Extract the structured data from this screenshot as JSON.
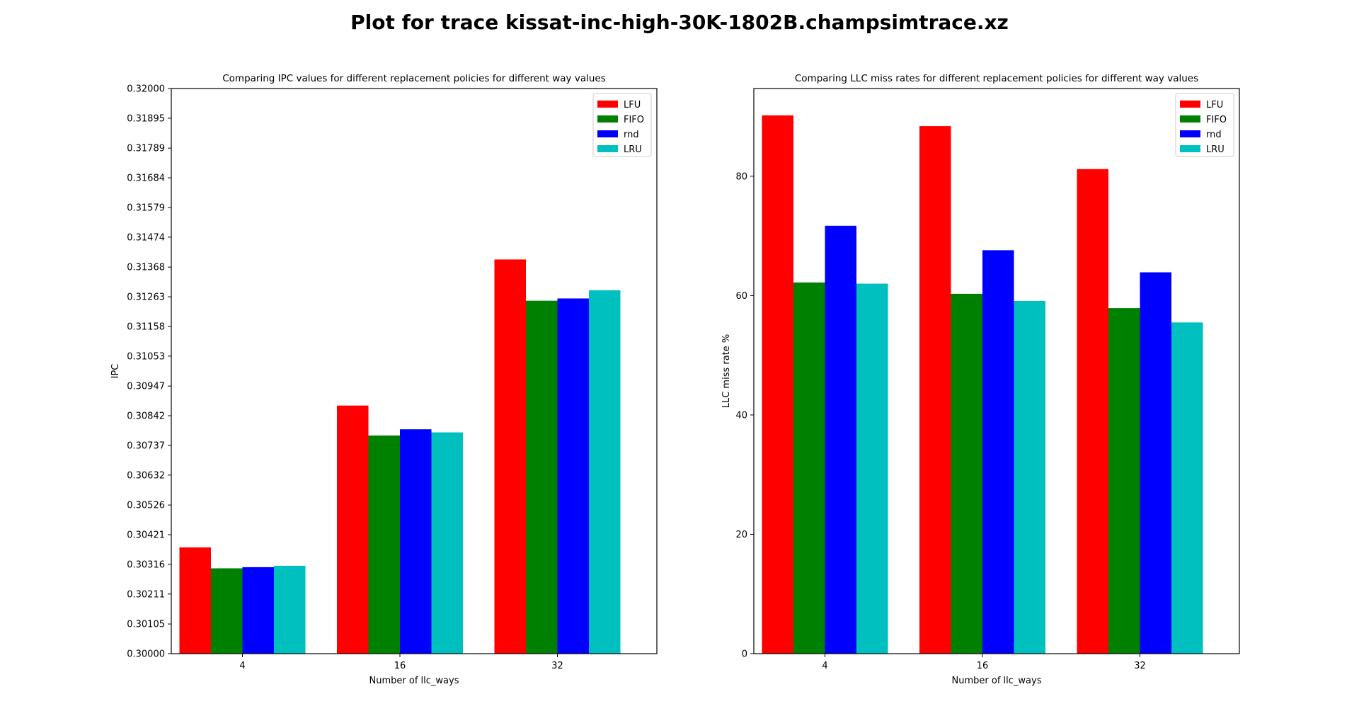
{
  "title": "Plot for trace kissat-inc-high-30K-1802B.champsimtrace.xz",
  "colors": {
    "LFU": "#ff0000",
    "FIFO": "#008000",
    "rnd": "#0000ff",
    "LRU": "#00bfbf"
  },
  "chart_data": [
    {
      "type": "bar",
      "title": "Comparing IPC values for different replacement policies for different way values",
      "xlabel": "Number of llc_ways",
      "ylabel": "IPC",
      "categories": [
        "4",
        "16",
        "32"
      ],
      "ylim": [
        0.3,
        0.32
      ],
      "yticks": [
        "0.30000",
        "0.30105",
        "0.30211",
        "0.30316",
        "0.30421",
        "0.30526",
        "0.30632",
        "0.30737",
        "0.30842",
        "0.30947",
        "0.31053",
        "0.31158",
        "0.31263",
        "0.31368",
        "0.31474",
        "0.31579",
        "0.31684",
        "0.31789",
        "0.31895",
        "0.32000"
      ],
      "legend_position": "top-right",
      "series": [
        {
          "name": "LFU",
          "values": [
            0.30376,
            0.30878,
            0.31395
          ]
        },
        {
          "name": "FIFO",
          "values": [
            0.30302,
            0.30772,
            0.31249
          ]
        },
        {
          "name": "rnd",
          "values": [
            0.30306,
            0.30794,
            0.31257
          ]
        },
        {
          "name": "LRU",
          "values": [
            0.30311,
            0.30783,
            0.31286
          ]
        }
      ]
    },
    {
      "type": "bar",
      "title": "Comparing LLC miss rates for different replacement policies for different way values",
      "xlabel": "Number of llc_ways",
      "ylabel": "LLC miss rate %",
      "categories": [
        "4",
        "16",
        "32"
      ],
      "ylim": [
        0,
        94.7
      ],
      "yticks": [
        "0",
        "20",
        "40",
        "60",
        "80"
      ],
      "legend_position": "top-right",
      "series": [
        {
          "name": "LFU",
          "values": [
            90.2,
            88.4,
            81.2
          ]
        },
        {
          "name": "FIFO",
          "values": [
            62.2,
            60.3,
            57.9
          ]
        },
        {
          "name": "rnd",
          "values": [
            71.7,
            67.6,
            63.9
          ]
        },
        {
          "name": "LRU",
          "values": [
            62.0,
            59.1,
            55.5
          ]
        }
      ]
    }
  ]
}
